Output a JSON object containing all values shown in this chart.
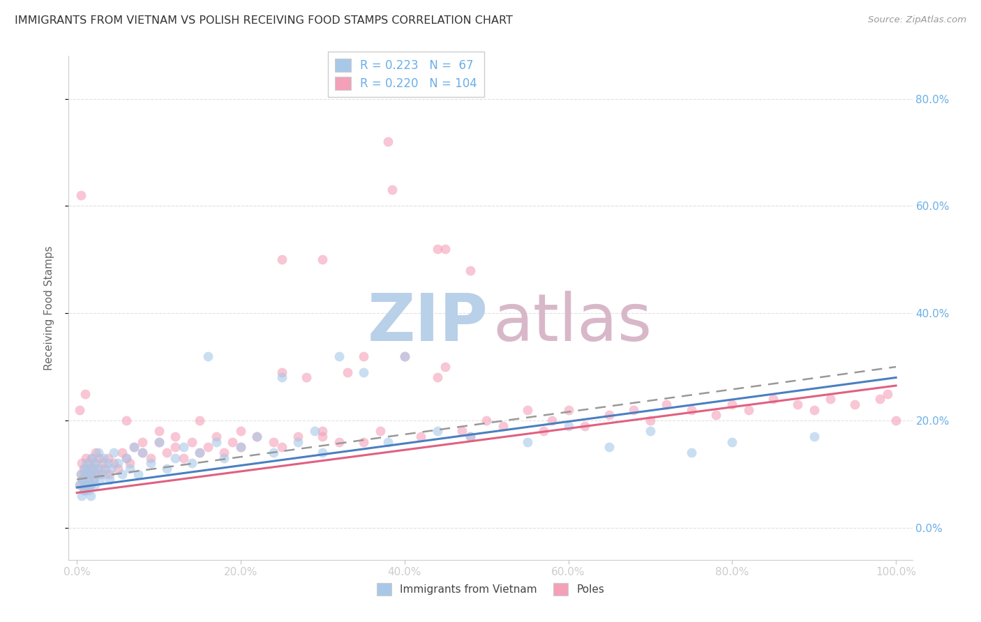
{
  "title": "IMMIGRANTS FROM VIETNAM VS POLISH RECEIVING FOOD STAMPS CORRELATION CHART",
  "source": "Source: ZipAtlas.com",
  "ylabel": "Receiving Food Stamps",
  "x_tick_labels": [
    "0.0%",
    "20.0%",
    "40.0%",
    "60.0%",
    "80.0%",
    "100.0%"
  ],
  "x_tick_vals": [
    0,
    20,
    40,
    60,
    80,
    100
  ],
  "y_tick_labels": [
    "0.0%",
    "20.0%",
    "40.0%",
    "60.0%",
    "80.0%"
  ],
  "y_tick_vals": [
    0,
    20,
    40,
    60,
    80
  ],
  "xlim": [
    -1,
    102
  ],
  "ylim": [
    -6,
    88
  ],
  "legend_label1": "Immigrants from Vietnam",
  "legend_label2": "Poles",
  "r1": "0.223",
  "n1": "67",
  "r2": "0.220",
  "n2": "104",
  "color_blue": "#a8c8e8",
  "color_pink": "#f4a0b8",
  "color_blue_line": "#4a7fc0",
  "color_pink_line": "#e06080",
  "color_dash": "#999999",
  "background_color": "#ffffff",
  "grid_color": "#dddddd",
  "title_color": "#333333",
  "right_tick_color": "#6aafe8",
  "source_color": "#999999",
  "vietnam_x": [
    0.3,
    0.5,
    0.6,
    0.7,
    0.8,
    0.9,
    1.0,
    1.1,
    1.2,
    1.3,
    1.4,
    1.5,
    1.6,
    1.7,
    1.8,
    1.9,
    2.0,
    2.1,
    2.2,
    2.3,
    2.5,
    2.6,
    2.8,
    3.0,
    3.2,
    3.5,
    3.8,
    4.0,
    4.2,
    4.5,
    5.0,
    5.5,
    6.0,
    6.5,
    7.0,
    7.5,
    8.0,
    9.0,
    10.0,
    11.0,
    12.0,
    13.0,
    14.0,
    15.0,
    16.0,
    17.0,
    18.0,
    20.0,
    22.0,
    24.0,
    25.0,
    27.0,
    29.0,
    30.0,
    32.0,
    35.0,
    38.0,
    40.0,
    44.0,
    48.0,
    55.0,
    60.0,
    65.0,
    70.0,
    75.0,
    80.0,
    90.0
  ],
  "vietnam_y": [
    8.0,
    10.0,
    6.0,
    9.0,
    7.0,
    11.0,
    8.0,
    10.0,
    12.0,
    9.0,
    7.0,
    11.0,
    8.0,
    6.0,
    10.0,
    13.0,
    9.0,
    11.0,
    8.0,
    12.0,
    10.0,
    14.0,
    9.0,
    11.0,
    13.0,
    10.0,
    12.0,
    9.0,
    11.0,
    14.0,
    12.0,
    10.0,
    13.0,
    11.0,
    15.0,
    10.0,
    14.0,
    12.0,
    16.0,
    11.0,
    13.0,
    15.0,
    12.0,
    14.0,
    32.0,
    16.0,
    13.0,
    15.0,
    17.0,
    14.0,
    28.0,
    16.0,
    18.0,
    14.0,
    32.0,
    29.0,
    16.0,
    32.0,
    18.0,
    17.0,
    16.0,
    19.0,
    15.0,
    18.0,
    14.0,
    16.0,
    17.0
  ],
  "poles_x": [
    0.3,
    0.4,
    0.5,
    0.6,
    0.7,
    0.8,
    0.9,
    1.0,
    1.1,
    1.2,
    1.3,
    1.4,
    1.5,
    1.6,
    1.7,
    1.8,
    1.9,
    2.0,
    2.1,
    2.2,
    2.3,
    2.5,
    2.7,
    3.0,
    3.2,
    3.5,
    3.8,
    4.0,
    4.5,
    5.0,
    5.5,
    6.0,
    6.5,
    7.0,
    8.0,
    9.0,
    10.0,
    11.0,
    12.0,
    13.0,
    14.0,
    15.0,
    16.0,
    17.0,
    18.0,
    19.0,
    20.0,
    22.0,
    24.0,
    25.0,
    27.0,
    28.0,
    30.0,
    32.0,
    33.0,
    35.0,
    37.0,
    40.0,
    42.0,
    44.0,
    45.0,
    47.0,
    48.0,
    50.0,
    52.0,
    55.0,
    57.0,
    58.0,
    60.0,
    62.0,
    65.0,
    68.0,
    70.0,
    72.0,
    75.0,
    78.0,
    80.0,
    82.0,
    85.0,
    88.0,
    90.0,
    92.0,
    95.0,
    98.0,
    99.0,
    100.0,
    38.0,
    38.5,
    44.0,
    45.0,
    48.0,
    30.0,
    1.0,
    25.0,
    0.5,
    6.0,
    8.0,
    10.0,
    12.0,
    15.0,
    20.0,
    25.0,
    30.0,
    35.0
  ],
  "poles_y": [
    22.0,
    8.0,
    10.0,
    12.0,
    9.0,
    11.0,
    7.0,
    10.0,
    13.0,
    8.0,
    11.0,
    9.0,
    12.0,
    10.0,
    8.0,
    13.0,
    11.0,
    9.0,
    12.0,
    10.0,
    14.0,
    11.0,
    13.0,
    10.0,
    12.0,
    11.0,
    13.0,
    10.0,
    12.0,
    11.0,
    14.0,
    13.0,
    12.0,
    15.0,
    14.0,
    13.0,
    16.0,
    14.0,
    15.0,
    13.0,
    16.0,
    14.0,
    15.0,
    17.0,
    14.0,
    16.0,
    15.0,
    17.0,
    16.0,
    29.0,
    17.0,
    28.0,
    18.0,
    16.0,
    29.0,
    32.0,
    18.0,
    32.0,
    17.0,
    28.0,
    30.0,
    18.0,
    17.0,
    20.0,
    19.0,
    22.0,
    18.0,
    20.0,
    22.0,
    19.0,
    21.0,
    22.0,
    20.0,
    23.0,
    22.0,
    21.0,
    23.0,
    22.0,
    24.0,
    23.0,
    22.0,
    24.0,
    23.0,
    24.0,
    25.0,
    20.0,
    72.0,
    63.0,
    52.0,
    52.0,
    48.0,
    50.0,
    25.0,
    50.0,
    62.0,
    20.0,
    16.0,
    18.0,
    17.0,
    20.0,
    18.0,
    15.0,
    17.0,
    16.0
  ],
  "vn_line_x0": 0,
  "vn_line_y0": 7.5,
  "vn_line_x1": 100,
  "vn_line_y1": 28.0,
  "pl_line_x0": 0,
  "pl_line_y0": 6.5,
  "pl_line_x1": 100,
  "pl_line_y1": 26.5,
  "dash_line_x0": 0,
  "dash_line_y0": 9.0,
  "dash_line_x1": 100,
  "dash_line_y1": 30.0
}
